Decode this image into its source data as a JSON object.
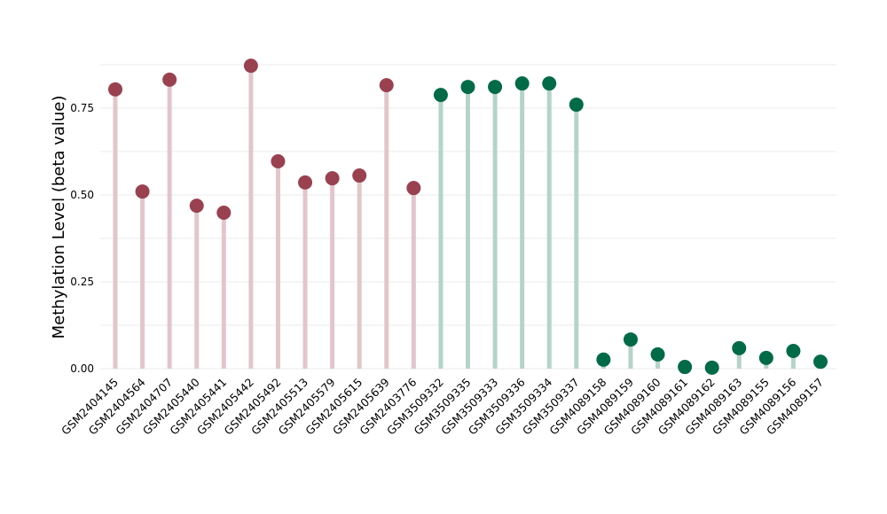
{
  "chart_data": {
    "type": "lollipop",
    "title": "",
    "xlabel": "",
    "ylabel": "Methylation Level (beta value)",
    "ylim": [
      0,
      0.88
    ],
    "yticks": [
      0.0,
      0.25,
      0.5,
      0.75
    ],
    "ytick_labels": [
      "0.00",
      "0.25",
      "0.50",
      "0.75"
    ],
    "grid": true,
    "colors": {
      "group1": "#9A4150",
      "group1_stem": "#E2C6CC",
      "group2": "#006B46",
      "group2_stem": "#B5D4C8"
    },
    "categories": [
      "GSM2404145",
      "GSM2404564",
      "GSM2404707",
      "GSM2405440",
      "GSM2405441",
      "GSM2405442",
      "GSM2405492",
      "GSM2405513",
      "GSM2405579",
      "GSM2405615",
      "GSM2405639",
      "GSM2403776",
      "GSM3509332",
      "GSM3509335",
      "GSM3509333",
      "GSM3509336",
      "GSM3509334",
      "GSM3509337",
      "GSM4089158",
      "GSM4089159",
      "GSM4089160",
      "GSM4089161",
      "GSM4089162",
      "GSM4089163",
      "GSM4089155",
      "GSM4089156",
      "GSM4089157"
    ],
    "values": [
      0.804,
      0.51,
      0.832,
      0.469,
      0.449,
      0.872,
      0.597,
      0.536,
      0.548,
      0.556,
      0.816,
      0.52,
      0.788,
      0.811,
      0.811,
      0.821,
      0.821,
      0.76,
      0.026,
      0.084,
      0.041,
      0.005,
      0.003,
      0.059,
      0.031,
      0.051,
      0.02
    ],
    "groups": [
      "group1",
      "group1",
      "group1",
      "group1",
      "group1",
      "group1",
      "group1",
      "group1",
      "group1",
      "group1",
      "group1",
      "group1",
      "group2",
      "group2",
      "group2",
      "group2",
      "group2",
      "group2",
      "group2",
      "group2",
      "group2",
      "group2",
      "group2",
      "group2",
      "group2",
      "group2",
      "group2"
    ]
  }
}
